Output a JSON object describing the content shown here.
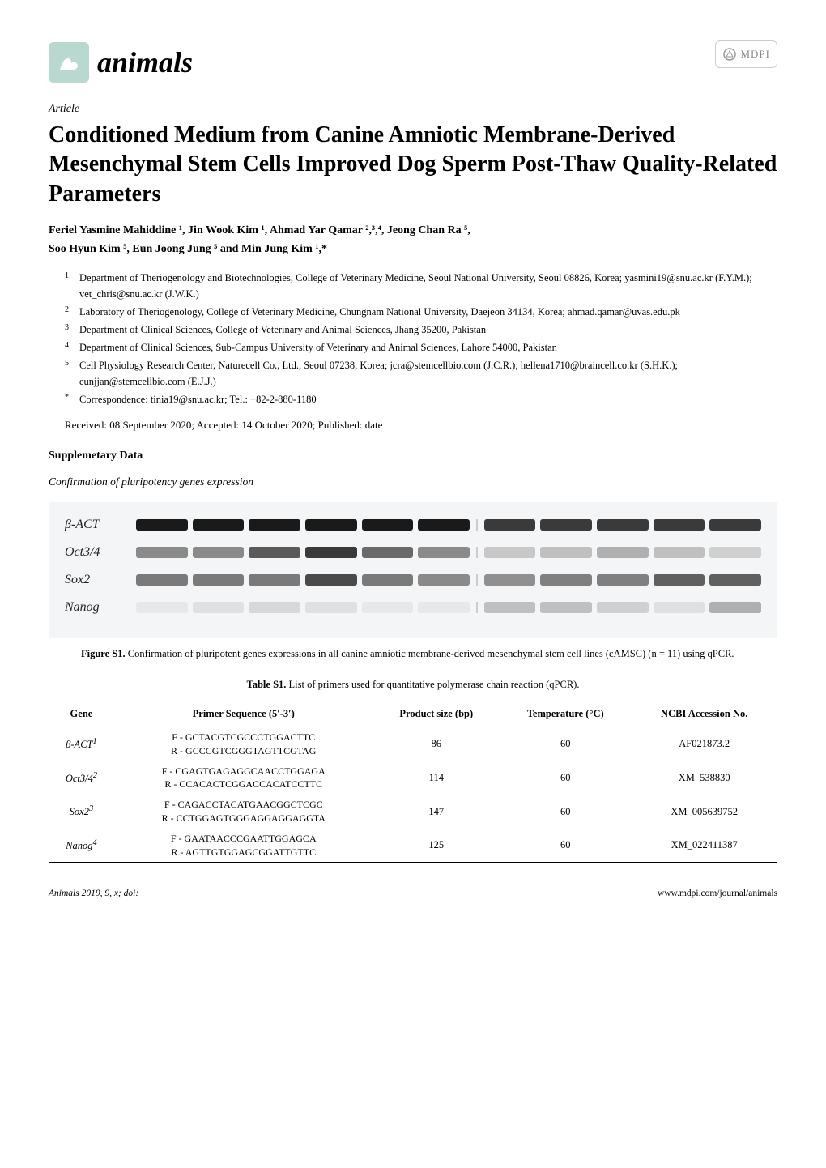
{
  "header": {
    "journal_name": "animals",
    "mdpi_label": "MDPI"
  },
  "article_type": "Article",
  "title": "Conditioned Medium from Canine Amniotic Membrane-Derived Mesenchymal Stem Cells Improved Dog Sperm Post-Thaw Quality-Related Parameters",
  "authors_line1": "Feriel Yasmine Mahiddine ¹, Jin Wook Kim ¹, Ahmad Yar Qamar ²,³,⁴, Jeong Chan Ra ⁵,",
  "authors_line2": "Soo Hyun Kim ⁵, Eun Joong Jung ⁵ and Min Jung Kim ¹,*",
  "affiliations": [
    {
      "num": "1",
      "text": "Department of Theriogenology and Biotechnologies, College of Veterinary Medicine, Seoul National University, Seoul 08826, Korea; yasmini19@snu.ac.kr (F.Y.M.); vet_chris@snu.ac.kr (J.W.K.)"
    },
    {
      "num": "2",
      "text": "Laboratory of Theriogenology, College of Veterinary Medicine, Chungnam National University, Daejeon 34134, Korea; ahmad.qamar@uvas.edu.pk"
    },
    {
      "num": "3",
      "text": "Department of Clinical Sciences, College of Veterinary and Animal Sciences, Jhang 35200, Pakistan"
    },
    {
      "num": "4",
      "text": "Department of Clinical Sciences, Sub-Campus University of Veterinary and Animal Sciences, Lahore 54000, Pakistan"
    },
    {
      "num": "5",
      "text": "Cell Physiology Research Center, Naturecell Co., Ltd., Seoul 07238, Korea; jcra@stemcellbio.com (J.C.R.); hellena1710@braincell.co.kr (S.H.K.); eunjjan@stemcellbio.com (E.J.J.)"
    },
    {
      "num": "*",
      "text": "Correspondence: tinia19@snu.ac.kr; Tel.: +82-2-880-1180"
    }
  ],
  "received_line": "Received: 08 September 2020; Accepted: 14 October 2020; Published: date",
  "supplementary_heading": "Supplemetary Data",
  "confirmation_heading": "Confirmation of pluripotency genes expression",
  "gel": {
    "background_color": "#f4f5f6",
    "rows": [
      {
        "label": "β-ACT",
        "label_style": "italic",
        "group1": [
          {
            "w": 1,
            "c": "#1a1a1a"
          },
          {
            "w": 1,
            "c": "#1a1a1a"
          },
          {
            "w": 1,
            "c": "#1a1a1a"
          },
          {
            "w": 1,
            "c": "#1a1a1a"
          },
          {
            "w": 1,
            "c": "#1a1a1a"
          },
          {
            "w": 1,
            "c": "#1a1a1a"
          }
        ],
        "group2": [
          {
            "w": 1,
            "c": "#3a3a3a"
          },
          {
            "w": 1,
            "c": "#3a3a3a"
          },
          {
            "w": 1,
            "c": "#3a3a3a"
          },
          {
            "w": 1,
            "c": "#3a3a3a"
          },
          {
            "w": 1,
            "c": "#3a3a3a"
          }
        ]
      },
      {
        "label": "Oct3/4",
        "label_style": "italic",
        "group1": [
          {
            "w": 1,
            "c": "#8a8a8a"
          },
          {
            "w": 1,
            "c": "#8a8a8a"
          },
          {
            "w": 1,
            "c": "#5a5a5a"
          },
          {
            "w": 1,
            "c": "#3a3a3a"
          },
          {
            "w": 1,
            "c": "#6a6a6a"
          },
          {
            "w": 1,
            "c": "#8a8a8a"
          }
        ],
        "group2": [
          {
            "w": 1,
            "c": "#c8c8c8"
          },
          {
            "w": 1,
            "c": "#c0c0c0"
          },
          {
            "w": 1,
            "c": "#b0b0b0"
          },
          {
            "w": 1,
            "c": "#c0c0c0"
          },
          {
            "w": 1,
            "c": "#d0d0d0"
          }
        ]
      },
      {
        "label": "Sox2",
        "label_style": "italic",
        "group1": [
          {
            "w": 1,
            "c": "#7a7a7a"
          },
          {
            "w": 1,
            "c": "#7a7a7a"
          },
          {
            "w": 1,
            "c": "#7a7a7a"
          },
          {
            "w": 1,
            "c": "#4a4a4a"
          },
          {
            "w": 1,
            "c": "#7a7a7a"
          },
          {
            "w": 1,
            "c": "#8a8a8a"
          }
        ],
        "group2": [
          {
            "w": 1,
            "c": "#909090"
          },
          {
            "w": 1,
            "c": "#808080"
          },
          {
            "w": 1,
            "c": "#808080"
          },
          {
            "w": 1,
            "c": "#606060"
          },
          {
            "w": 1,
            "c": "#606060"
          }
        ]
      },
      {
        "label": "Nanog",
        "label_style": "italic",
        "group1": [
          {
            "w": 1,
            "c": "#e8e8e8"
          },
          {
            "w": 1,
            "c": "#e0e0e0"
          },
          {
            "w": 1,
            "c": "#d8d8d8"
          },
          {
            "w": 1,
            "c": "#e0e0e0"
          },
          {
            "w": 1,
            "c": "#e8e8e8"
          },
          {
            "w": 1,
            "c": "#e8e8e8"
          }
        ],
        "group2": [
          {
            "w": 1,
            "c": "#c0c0c0"
          },
          {
            "w": 1,
            "c": "#c0c0c0"
          },
          {
            "w": 1,
            "c": "#d0d0d0"
          },
          {
            "w": 1,
            "c": "#e0e0e0"
          },
          {
            "w": 1,
            "c": "#b0b0b0"
          }
        ]
      }
    ]
  },
  "figure_caption_label": "Figure S1.",
  "figure_caption_text": " Confirmation of pluripotent genes expressions in all canine amniotic membrane-derived mesenchymal stem cell lines (cAMSC) (n = 11) using qPCR.",
  "table_caption_label": "Table S1.",
  "table_caption_text": " List of primers used for quantitative polymerase chain reaction (qPCR).",
  "table": {
    "columns": [
      "Gene",
      "Primer Sequence (5′-3′)",
      "Product size (bp)",
      "Temperature (°C)",
      "NCBI Accession No."
    ],
    "rows": [
      {
        "gene": "β-ACT",
        "gene_sup": "1",
        "seq": "F - GCTACGTCGCCCTGGACTTC\nR - GCCCGTCGGGTAGTTCGTAG",
        "size": "86",
        "temp": "60",
        "acc": "AF021873.2"
      },
      {
        "gene": "Oct3/4",
        "gene_sup": "2",
        "seq": "F - CGAGTGAGAGGCAACCTGGAGA\nR - CCACACTCGGACCACATCCTTC",
        "size": "114",
        "temp": "60",
        "acc": "XM_538830"
      },
      {
        "gene": "Sox2",
        "gene_sup": "3",
        "seq": "F - CAGACCTACATGAACGGCTCGC\nR - CCTGGAGTGGGAGGAGGAGGTA",
        "size": "147",
        "temp": "60",
        "acc": "XM_005639752"
      },
      {
        "gene": "Nanog",
        "gene_sup": "4",
        "seq": "F - GAATAACCCGAATTGGAGCA\nR - AGTTGTGGAGCGGATTGTTC",
        "size": "125",
        "temp": "60",
        "acc": "XM_022411387"
      }
    ]
  },
  "footer": {
    "left": "Animals 2019, 9, x; doi:",
    "right": "www.mdpi.com/journal/animals"
  }
}
